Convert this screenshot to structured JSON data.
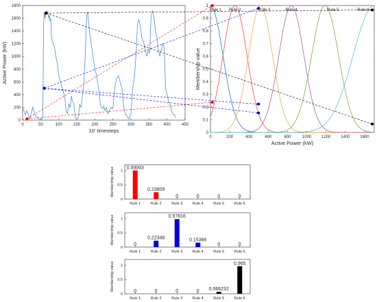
{
  "chart_data": [
    {
      "type": "line",
      "xlabel": "10' timesteps",
      "ylabel": "Active Power (kW)",
      "xlim": [
        0,
        450
      ],
      "ylim": [
        0,
        1800
      ],
      "xticks": [
        "0",
        "50",
        "100",
        "150",
        "200",
        "250",
        "300",
        "350",
        "400",
        "450"
      ],
      "yticks": [
        "0",
        "200",
        "400",
        "600",
        "800",
        "1000",
        "1200",
        "1400",
        "1600",
        "1800"
      ],
      "series": [
        {
          "color": "#4a90c8",
          "x": [
            0,
            8,
            12,
            20,
            28,
            35,
            42,
            50,
            56,
            58,
            60,
            62,
            64,
            66,
            68,
            70,
            72,
            74,
            76,
            78,
            80,
            84,
            88,
            92,
            96,
            100,
            105,
            110,
            115,
            118,
            120,
            124,
            128,
            132,
            135,
            138,
            142,
            146,
            150,
            154,
            158,
            162,
            166,
            170,
            174,
            176,
            178,
            180,
            182,
            185,
            190,
            195,
            200,
            205,
            210,
            213,
            215,
            218,
            222,
            225,
            228,
            232,
            236,
            240,
            245,
            250,
            255,
            260,
            265,
            270,
            275,
            280,
            285,
            290,
            295,
            300,
            305,
            310,
            315,
            318,
            320,
            322,
            325,
            328,
            330,
            333,
            336,
            340,
            344,
            348,
            352,
            356,
            360,
            364,
            368,
            372,
            376,
            380,
            384,
            388,
            392,
            396,
            400,
            404,
            408,
            412,
            416,
            420,
            425
          ],
          "y": [
            200,
            80,
            150,
            20,
            200,
            80,
            30,
            0,
            40,
            1500,
            1700,
            1600,
            1650,
            1720,
            1680,
            1700,
            1600,
            1650,
            1550,
            1600,
            1300,
            1200,
            1150,
            1000,
            900,
            700,
            600,
            500,
            400,
            300,
            150,
            100,
            250,
            200,
            380,
            300,
            250,
            30,
            20,
            40,
            250,
            200,
            400,
            600,
            1100,
            1450,
            1650,
            1700,
            1600,
            1400,
            1200,
            1000,
            800,
            700,
            500,
            400,
            250,
            200,
            180,
            220,
            150,
            200,
            100,
            150,
            200,
            180,
            500,
            650,
            700,
            600,
            500,
            200,
            100,
            50,
            20,
            100,
            500,
            700,
            1100,
            1500,
            1550,
            1580,
            1500,
            1400,
            1300,
            1250,
            1200,
            1100,
            1000,
            1100,
            1050,
            1650,
            1720,
            1600,
            1400,
            1300,
            1100,
            1000,
            1100,
            1200,
            1150,
            500,
            400,
            300,
            250,
            150,
            100,
            80,
            40
          ]
        }
      ]
    },
    {
      "type": "line",
      "xlabel": "Active Power (kW)",
      "ylabel": "Membership value",
      "xlim": [
        0,
        1700
      ],
      "ylim": [
        0,
        1
      ],
      "xticks": [
        "0",
        "200",
        "400",
        "600",
        "800",
        "1000",
        "1200",
        "1400",
        "1600"
      ],
      "yticks": [
        "0",
        "0.1",
        "0.2",
        "0.3",
        "0.4",
        "0.5",
        "0.6",
        "0.7",
        "0.8",
        "0.9",
        "1"
      ],
      "series": [
        {
          "name": "Rule 1",
          "color": "#1f77b4",
          "center": 0,
          "sigma": 130,
          "label_at": 55
        },
        {
          "name": "Rule 2",
          "color": "#d9534f",
          "center": 255,
          "sigma": 125,
          "label_at": 255
        },
        {
          "name": "Rule 3",
          "color": "#e6b043",
          "center": 520,
          "sigma": 125,
          "label_at": 560
        },
        {
          "name": "Rule 4",
          "color": "#a25ea8",
          "center": 840,
          "sigma": 130,
          "label_at": 840
        },
        {
          "name": "Rule 5",
          "color": "#77ad3c",
          "center": 1190,
          "sigma": 140,
          "label_at": 1270
        },
        {
          "name": "Rule 6",
          "color": "#52c3d6",
          "center": 1700,
          "sigma": 220,
          "label_at": 1585
        }
      ]
    },
    {
      "type": "bar",
      "ylabel": "Membership value",
      "ylim": [
        0,
        1.2
      ],
      "yticks": [
        "0",
        "0.5",
        "1"
      ],
      "color": "#ff0000",
      "categories": [
        "Rule 1",
        "Rule 2",
        "Rule 3",
        "Rule 4",
        "Rule 5",
        "Rule 6"
      ],
      "values": [
        0.99993,
        0.23809,
        0,
        0,
        0,
        0
      ],
      "labels": [
        "0.99993",
        "0.23809",
        "0",
        "0",
        "0",
        "0"
      ]
    },
    {
      "type": "bar",
      "ylabel": "Membership value",
      "ylim": [
        0,
        1.2
      ],
      "yticks": [
        "0",
        "0.5",
        "1"
      ],
      "color": "#0000dd",
      "categories": [
        "Rule 1",
        "Rule 2",
        "Rule 3",
        "Rule 4",
        "Rule 5",
        "Rule 6"
      ],
      "values": [
        0,
        0.22348,
        0.97816,
        0.15366,
        0,
        0
      ],
      "labels": [
        "0",
        "0.22348",
        "0.97816",
        "0.15366",
        "0",
        "0"
      ]
    },
    {
      "type": "bar",
      "ylabel": "Membership value",
      "ylim": [
        0,
        1.2
      ],
      "yticks": [
        "0",
        "0.5",
        "1"
      ],
      "color": "#000000",
      "categories": [
        "Rule 1",
        "Rule 2",
        "Rule 3",
        "Rule 4",
        "Rule 5",
        "Rule 6"
      ],
      "values": [
        0,
        0,
        0,
        0,
        0.066232,
        0.965
      ],
      "labels": [
        "0",
        "0",
        "0",
        "0",
        "0.066232",
        "0.965"
      ]
    }
  ],
  "markers": [
    {
      "color": "#ff0000",
      "t": 12,
      "p": 20,
      "membership": [
        0.99993,
        0.23809
      ]
    },
    {
      "color": "#0000dd",
      "t": 60,
      "p": 500,
      "membership": [
        0.97816,
        0.22348,
        0.15366
      ]
    },
    {
      "color": "#000000",
      "t": 65,
      "p": 1680,
      "membership": [
        0.965,
        0.066232
      ]
    }
  ]
}
